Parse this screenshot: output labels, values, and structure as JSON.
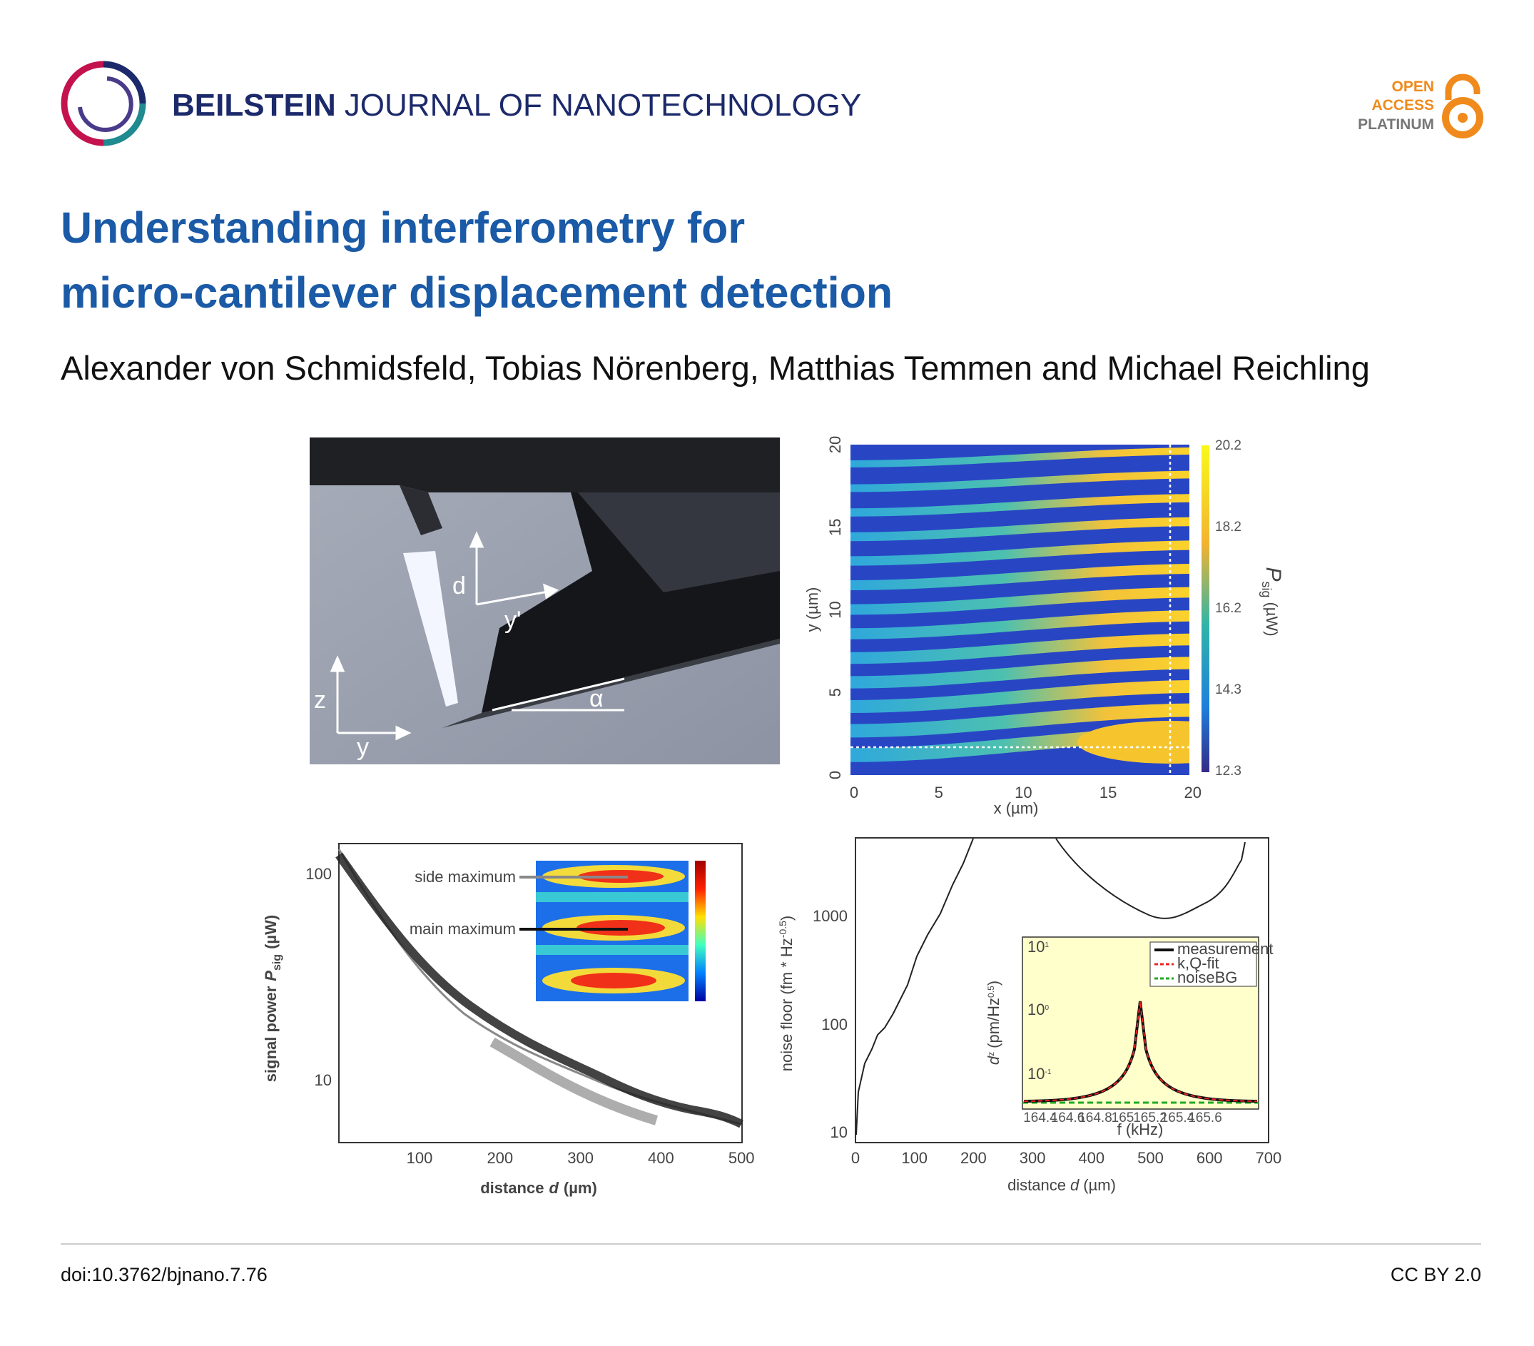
{
  "header": {
    "journal_bold": "BEILSTEIN",
    "journal_rest": "JOURNAL OF NANOTECHNOLOGY",
    "badge": [
      "OPEN",
      "ACCESS",
      "PLATINUM"
    ]
  },
  "title": [
    "Understanding interferometry for",
    "micro-cantilever displacement detection"
  ],
  "authors": "Alexander von Schmidsfeld, Tobias Nörenberg, Matthias Temmen and Michael Reichling",
  "figure": {
    "photo": {
      "labels": [
        "d",
        "y'",
        "z",
        "y",
        "α"
      ]
    },
    "heatmap": {
      "xticks": [
        0,
        5,
        10,
        15,
        20
      ],
      "yticks": [
        0,
        5,
        10,
        15,
        20
      ],
      "colorbar_ticks": [
        20.2,
        18.2,
        16.2,
        14.3,
        12.3
      ],
      "xlabel": "x (µm)",
      "ylabel": "y (µm)",
      "colorbar_label": {
        "symbol": "P",
        "subscript": "sig",
        "unit": "(µW)"
      }
    },
    "signal_power": {
      "xticks": [
        100,
        200,
        300,
        400,
        500
      ],
      "yticks": [
        100,
        10
      ],
      "xlabel": {
        "prefix": "distance",
        "symbol": "d",
        "unit": "(µm)"
      },
      "ylabel": {
        "prefix": "signal power",
        "symbol": "P",
        "subscript": "sig",
        "unit": "(µW)"
      },
      "annotations": [
        "side maximum",
        "main maximum"
      ]
    },
    "noise_floor": {
      "xticks": [
        0,
        100,
        200,
        300,
        400,
        500,
        600,
        700
      ],
      "yticks": [
        10,
        100,
        1000
      ],
      "xlabel": {
        "prefix": "distance",
        "symbol": "d",
        "unit": "(µm)"
      },
      "ylabel": {
        "prefix": "noise floor (fm * Hz",
        "superscript": "-0.5",
        "suffix": ")"
      },
      "inset": {
        "xticks": [
          164.4,
          164.6,
          164.8,
          165,
          165.2,
          165.4,
          165.6
        ],
        "xlabel": "f (kHz)",
        "yticks": [
          {
            "base": "10",
            "exponent": "1"
          },
          {
            "base": "10",
            "exponent": "0"
          },
          {
            "base": "10",
            "exponent": "-1"
          }
        ],
        "ylabel": {
          "symbol": "d",
          "superscript": "z",
          "unit_prefix": "(pm/Hz",
          "unit_superscript": "0.5",
          "unit_suffix": ")"
        },
        "legend": [
          "measurement",
          "k,Q-fit",
          "noiseBG"
        ]
      }
    }
  },
  "footer": {
    "doi": "doi:10.3762/bjnano.7.76",
    "license": "CC BY 2.0"
  }
}
